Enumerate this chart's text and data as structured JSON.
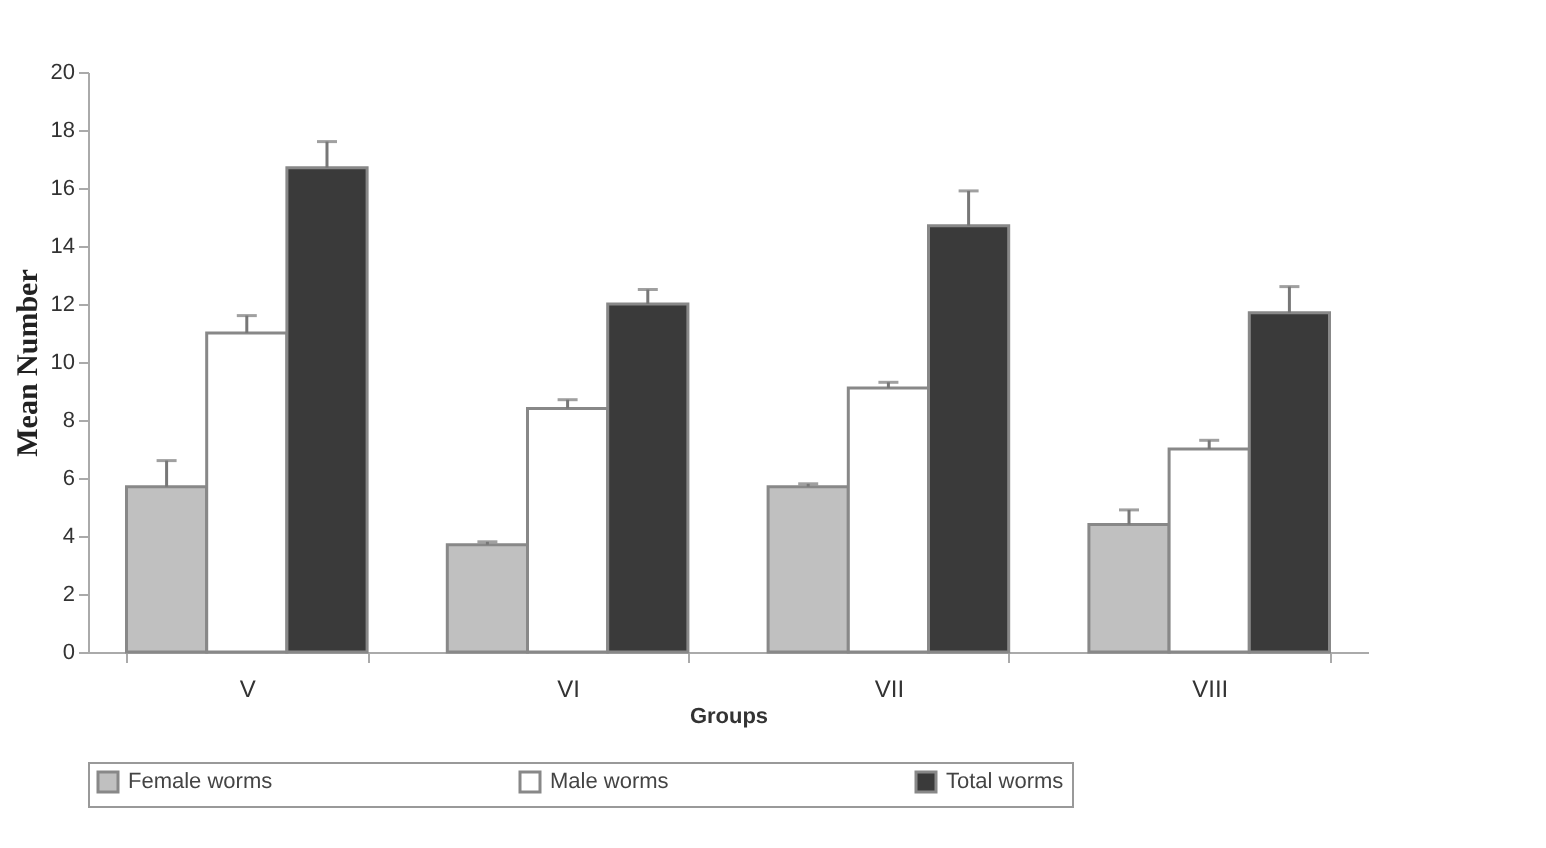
{
  "chart_data": {
    "type": "bar",
    "xlabel": "Groups",
    "ylabel": "Mean Number",
    "categories": [
      "V",
      "VI",
      "VII",
      "VIII"
    ],
    "series": [
      {
        "name": "Female worms",
        "color": "#c0c0c0",
        "values": [
          5.7,
          3.7,
          5.7,
          4.4
        ],
        "errors": [
          [
            5.7,
            6.6
          ],
          [
            3.7,
            3.8
          ],
          [
            5.7,
            5.8
          ],
          [
            4.4,
            4.9
          ]
        ]
      },
      {
        "name": "Male worms",
        "color": "#ffffff",
        "values": [
          11.0,
          8.4,
          9.1,
          7.0
        ],
        "errors": [
          [
            11.0,
            11.6
          ],
          [
            8.4,
            8.7
          ],
          [
            9.1,
            9.3
          ],
          [
            7.0,
            7.3
          ]
        ]
      },
      {
        "name": "Total worms",
        "color": "#3a3a3a",
        "values": [
          16.7,
          12.0,
          14.7,
          11.7
        ],
        "errors": [
          [
            16.7,
            17.6
          ],
          [
            12.0,
            12.5
          ],
          [
            14.7,
            15.9
          ],
          [
            11.7,
            12.6
          ]
        ]
      }
    ],
    "ylim": [
      0,
      20
    ],
    "yticks": [
      0,
      2,
      4,
      6,
      8,
      10,
      12,
      14,
      16,
      18,
      20
    ],
    "grid": false,
    "legend": "bottom"
  }
}
